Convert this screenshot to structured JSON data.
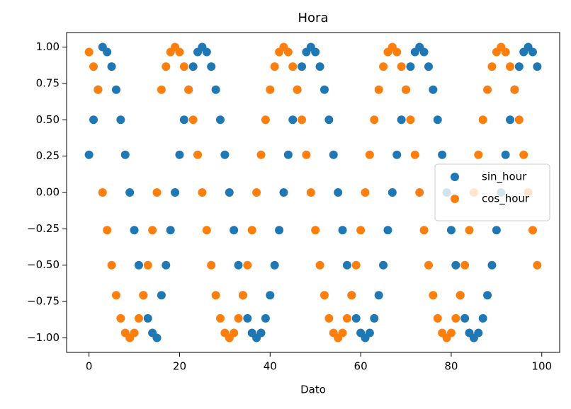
{
  "chart_data": {
    "type": "scatter",
    "title": "Hora",
    "x_label": "Dato",
    "x": [
      0,
      1,
      2,
      3,
      4,
      5,
      6,
      7,
      8,
      9,
      10,
      11,
      12,
      13,
      14,
      15,
      16,
      17,
      18,
      19,
      20,
      21,
      22,
      23,
      24,
      25,
      26,
      27,
      28,
      29,
      30,
      31,
      32,
      33,
      34,
      35,
      36,
      37,
      38,
      39,
      40,
      41,
      42,
      43,
      44,
      45,
      46,
      47,
      48,
      49,
      50,
      51,
      52,
      53,
      54,
      55,
      56,
      57,
      58,
      59,
      60,
      61,
      62,
      63,
      64,
      65,
      66,
      67,
      68,
      69,
      70,
      71,
      72,
      73,
      74,
      75,
      76,
      77,
      78,
      79,
      80,
      81,
      82,
      83,
      84,
      85,
      86,
      87,
      88,
      89,
      90,
      91,
      92,
      93,
      94,
      95,
      96,
      97,
      98,
      99
    ],
    "series": [
      {
        "name": "sin_hour",
        "color": "#1f77b4",
        "values": [
          0.259,
          0.5,
          0.707,
          1,
          0.966,
          0.866,
          0.707,
          0.5,
          0.259,
          0,
          -0.259,
          -0.5,
          -0.707,
          -0.866,
          -0.966,
          -1,
          -0.707,
          -0.5,
          -0.259,
          0,
          0.259,
          0.5,
          0.707,
          0.866,
          0.966,
          1,
          0.966,
          0.866,
          0.707,
          0.5,
          0.259,
          0,
          -0.259,
          -0.5,
          -0.707,
          -0.866,
          -0.966,
          -1,
          -0.966,
          -0.866,
          -0.707,
          -0.5,
          -0.259,
          0,
          0.259,
          0.5,
          0.707,
          0.866,
          0.966,
          1,
          0.966,
          0.866,
          0.707,
          0.5,
          0.259,
          0,
          -0.259,
          -0.5,
          -0.707,
          -0.866,
          -0.966,
          -1,
          -0.966,
          -0.866,
          -0.707,
          -0.5,
          -0.259,
          0,
          0.259,
          0.5,
          0.707,
          0.866,
          0.966,
          1,
          0.966,
          0.866,
          0.707,
          0.5,
          0.259,
          0,
          -0.259,
          -0.5,
          -0.707,
          -0.866,
          -0.966,
          -1,
          -0.966,
          -0.866,
          -0.707,
          -0.5,
          -0.259,
          0,
          0.259,
          0.5,
          0.707,
          0.866,
          0.966,
          1,
          0.966,
          0.866
        ]
      },
      {
        "name": "cos_hour",
        "color": "#ff7f0e",
        "values": [
          0.966,
          0.866,
          0.707,
          0,
          -0.259,
          -0.5,
          -0.707,
          -0.866,
          -0.966,
          -1,
          -0.966,
          -0.866,
          -0.707,
          -0.5,
          -0.259,
          0,
          0.707,
          0.866,
          0.966,
          1,
          0.966,
          0.866,
          0.707,
          0.5,
          0.259,
          0,
          -0.259,
          -0.5,
          -0.707,
          -0.866,
          -0.966,
          -1,
          -0.966,
          -0.866,
          -0.707,
          -0.5,
          -0.259,
          0,
          0.259,
          0.5,
          0.707,
          0.866,
          0.966,
          1,
          0.966,
          0.866,
          0.707,
          0.5,
          0.259,
          0,
          -0.259,
          -0.5,
          -0.707,
          -0.866,
          -0.966,
          -1,
          -0.966,
          -0.866,
          -0.707,
          -0.5,
          -0.259,
          0,
          0.259,
          0.5,
          0.707,
          0.866,
          0.966,
          1,
          0.966,
          0.866,
          0.707,
          0.5,
          0.259,
          0,
          -0.259,
          -0.5,
          -0.707,
          -0.866,
          -0.966,
          -1,
          -0.966,
          -0.866,
          -0.707,
          -0.5,
          -0.259,
          0,
          0.259,
          0.5,
          0.707,
          0.866,
          0.966,
          1,
          0.966,
          0.866,
          0.707,
          0.5,
          0.259,
          0,
          -0.259,
          -0.5
        ]
      }
    ],
    "xlim": [
      -4.95,
      103.95
    ],
    "xticks": [
      0,
      20,
      40,
      60,
      80,
      100
    ],
    "ylim": [
      -1.1,
      1.1
    ],
    "yticks": [
      {
        "value": -1,
        "label": "−1.00"
      },
      {
        "value": -0.75,
        "label": "−0.75"
      },
      {
        "value": -0.5,
        "label": "−0.50"
      },
      {
        "value": -0.25,
        "label": "−0.25"
      },
      {
        "value": 0,
        "label": "0.00"
      },
      {
        "value": 0.25,
        "label": "0.25"
      },
      {
        "value": 0.5,
        "label": "0.50"
      },
      {
        "value": 0.75,
        "label": "0.75"
      },
      {
        "value": 1,
        "label": "1.00"
      }
    ],
    "grid": false,
    "legend": "center right"
  }
}
